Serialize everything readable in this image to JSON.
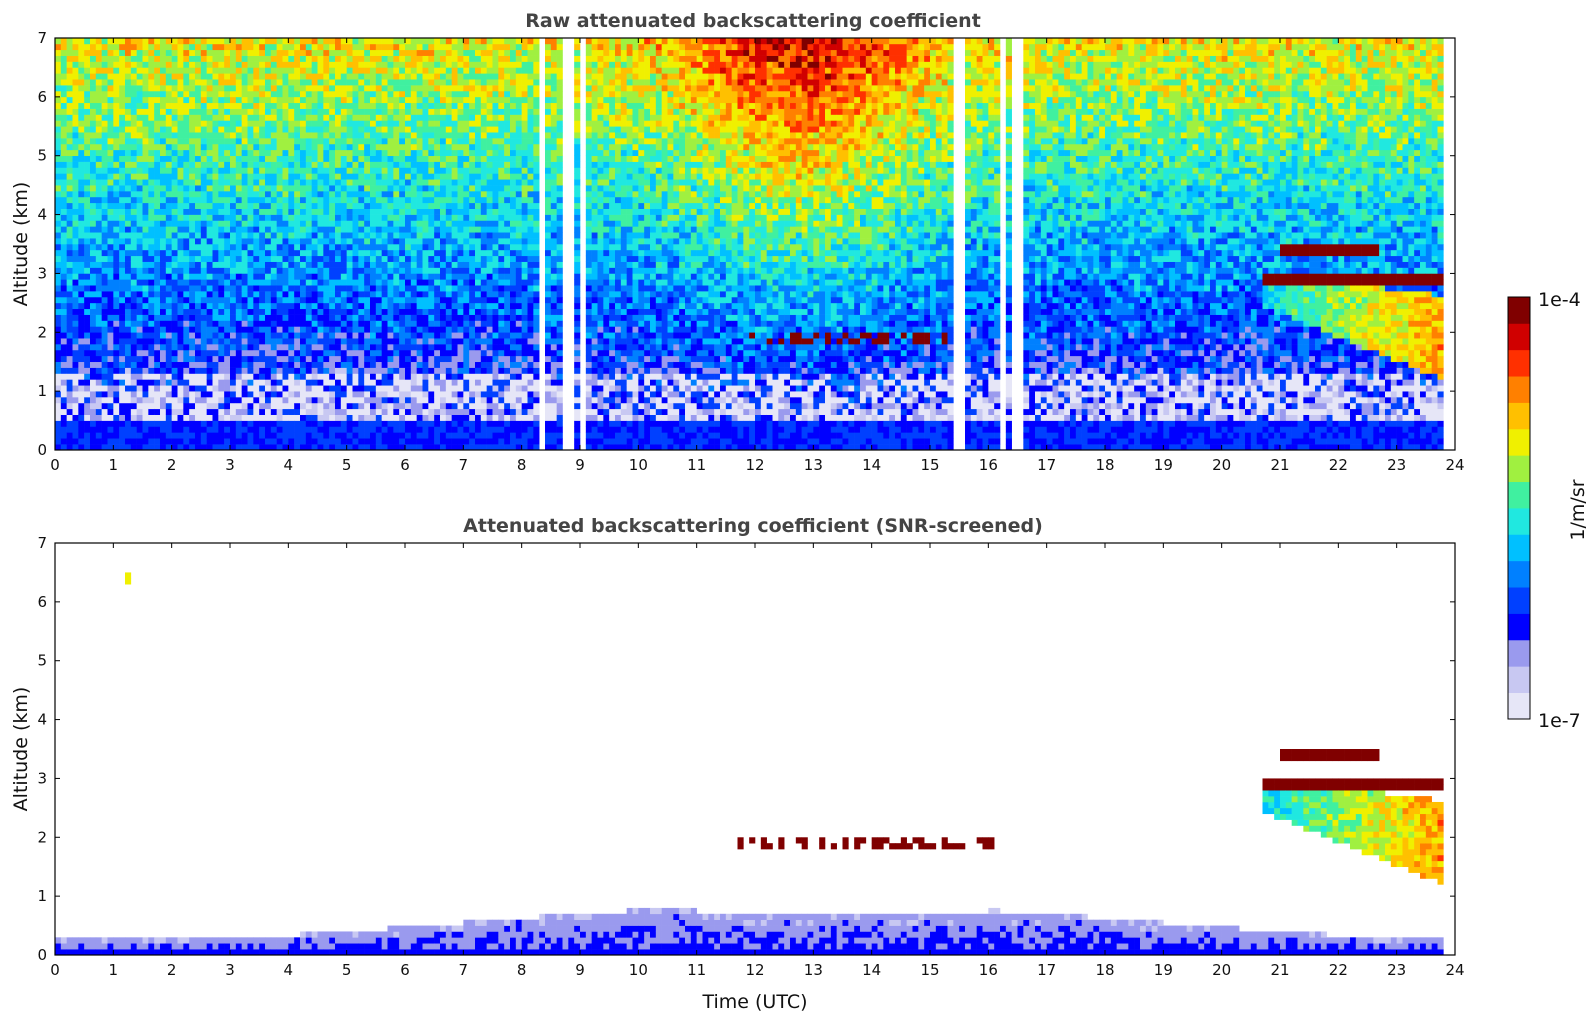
{
  "chart_data": [
    {
      "type": "heatmap",
      "title": "Raw attenuated backscattering coefficient",
      "xlabel": "",
      "ylabel": "Altitude (km)",
      "xlim": [
        0,
        24
      ],
      "ylim": [
        0,
        7
      ],
      "xticks": [
        "0",
        "1",
        "2",
        "3",
        "4",
        "5",
        "6",
        "7",
        "8",
        "9",
        "10",
        "11",
        "12",
        "13",
        "14",
        "15",
        "16",
        "17",
        "18",
        "19",
        "20",
        "21",
        "22",
        "23",
        "24"
      ],
      "yticks": [
        "0",
        "1",
        "2",
        "3",
        "4",
        "5",
        "6",
        "7"
      ],
      "grid": false,
      "data_gaps_hours": [
        [
          8.3,
          8.45
        ],
        [
          8.75,
          8.9
        ],
        [
          9.0,
          9.1
        ],
        [
          15.4,
          15.55
        ],
        [
          16.1,
          16.15
        ],
        [
          16.25,
          16.3
        ],
        [
          16.45,
          16.55
        ]
      ],
      "features": [
        {
          "name": "noisy background",
          "x": [
            0,
            23.8
          ],
          "y": [
            0.6,
            7.0
          ]
        },
        {
          "name": "boundary layer",
          "x": [
            0,
            23.8
          ],
          "y": [
            0,
            0.5
          ]
        },
        {
          "name": "cloud layer",
          "x": [
            20.7,
            23.8
          ],
          "y": [
            2.7,
            3.5
          ]
        },
        {
          "name": "precipitation",
          "x": [
            20.7,
            23.8
          ],
          "y": [
            1.2,
            3.0
          ]
        },
        {
          "name": "thin cloud",
          "x": [
            11.7,
            15.3
          ],
          "y": [
            1.8,
            2.0
          ]
        }
      ]
    },
    {
      "type": "heatmap",
      "title": "Attenuated backscattering coefficient (SNR-screened)",
      "xlabel": "Time (UTC)",
      "ylabel": "Altitude (km)",
      "xlim": [
        0,
        24
      ],
      "ylim": [
        0,
        7
      ],
      "xticks": [
        "0",
        "1",
        "2",
        "3",
        "4",
        "5",
        "6",
        "7",
        "8",
        "9",
        "10",
        "11",
        "12",
        "13",
        "14",
        "15",
        "16",
        "17",
        "18",
        "19",
        "20",
        "21",
        "22",
        "23",
        "24"
      ],
      "yticks": [
        "0",
        "1",
        "2",
        "3",
        "4",
        "5",
        "6",
        "7"
      ],
      "grid": false,
      "features": [
        {
          "name": "boundary layer",
          "x": [
            0,
            23.8
          ],
          "y": [
            0,
            0.9
          ]
        },
        {
          "name": "cloud layer",
          "x": [
            20.7,
            23.8
          ],
          "y": [
            2.7,
            3.5
          ]
        },
        {
          "name": "precipitation",
          "x": [
            20.7,
            23.8
          ],
          "y": [
            1.2,
            3.0
          ]
        },
        {
          "name": "thin cloud",
          "x": [
            11.7,
            16.2
          ],
          "y": [
            1.8,
            2.1
          ]
        },
        {
          "name": "isolated echo",
          "x": [
            1.2,
            1.3
          ],
          "y": [
            6.35,
            6.5
          ]
        }
      ]
    }
  ],
  "colorbar": {
    "label": "1/m/sr",
    "max_label": "1e-4",
    "min_label": "1e-7",
    "scale": "log",
    "colormap": [
      "#e6e6f7",
      "#c8c8f2",
      "#9a9aee",
      "#0000ff",
      "#0040ff",
      "#0080ff",
      "#00c0ff",
      "#20e8e0",
      "#40f0a0",
      "#a0f040",
      "#f0f000",
      "#ffc000",
      "#ff8000",
      "#ff3000",
      "#d00000",
      "#800000"
    ]
  }
}
